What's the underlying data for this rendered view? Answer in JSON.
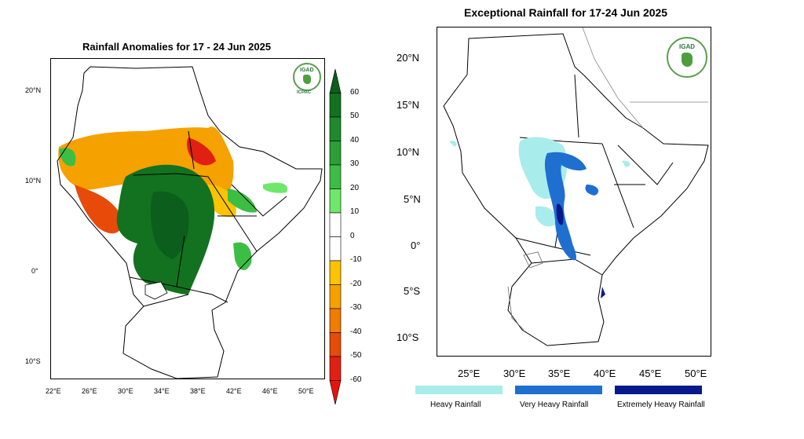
{
  "left_map": {
    "title": "Rainfall Anomalies for 17 - 24 Jun 2025",
    "lat_labels": [
      "20°N",
      "10°N",
      "0°",
      "10°S"
    ],
    "lon_labels": [
      "22°E",
      "26°E",
      "30°E",
      "34°E",
      "38°E",
      "42°E",
      "46°E",
      "50°E"
    ],
    "logo_text": "IGAD",
    "logo_caption": "ICPAC",
    "colorbar": {
      "labels": [
        "60",
        "50",
        "40",
        "30",
        "20",
        "10",
        "0",
        "-10",
        "-20",
        "-30",
        "-40",
        "-50",
        "-60"
      ],
      "colors": [
        "#0b5e1c",
        "#13721f",
        "#1f8a2b",
        "#2aa035",
        "#3cbe45",
        "#6ee86b",
        "#ffffff",
        "#ffffff",
        "#fcc300",
        "#f5a100",
        "#f07c00",
        "#e84a0a",
        "#e02012",
        "#e8130c"
      ]
    }
  },
  "right_map": {
    "title": "Exceptional Rainfall for 17-24 Jun 2025",
    "lat_labels": [
      "20°N",
      "15°N",
      "10°N",
      "5°N",
      "0°",
      "5°S",
      "10°S"
    ],
    "lon_labels": [
      "25°E",
      "30°E",
      "35°E",
      "40°E",
      "45°E",
      "50°E"
    ],
    "logo_text": "IGAD"
  },
  "legend": [
    {
      "label": "Heavy Rainfall",
      "color": "#a9ecec"
    },
    {
      "label": "Very Heavy Rainfall",
      "color": "#1f6fd1"
    },
    {
      "label": "Extremely Heavy Rainfall",
      "color": "#061a8c"
    }
  ]
}
